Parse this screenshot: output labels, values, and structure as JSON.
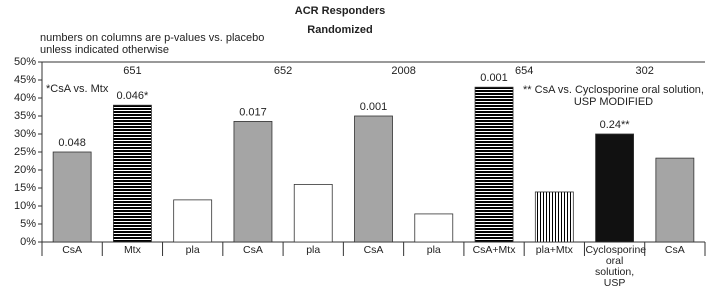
{
  "chart_data": {
    "type": "bar",
    "title": "ACR Responders",
    "subtitle": "Randomized",
    "annotation": "numbers on columns are p-values vs. placebo unless indicated otherwise",
    "notes": [
      "*CsA vs. Mtx",
      "** CsA vs. Cyclosporine oral solution, USP MODIFIED"
    ],
    "categories": [
      "CsA",
      "Mtx",
      "pla",
      "CsA",
      "pla",
      "CsA",
      "pla",
      "CsA+Mtx",
      "pla+Mtx",
      "Cyclosporine oral solution, USP MODIFIED",
      "CsA"
    ],
    "category_groups": [
      "651",
      "651",
      "651",
      "652",
      "652",
      "2008",
      "2008",
      "654",
      "654",
      "302",
      "302"
    ],
    "values": [
      25,
      38,
      11.7,
      33.5,
      16,
      35,
      7.8,
      43,
      13.9,
      30,
      23.3
    ],
    "column_labels": [
      "0.048",
      "0.046*",
      null,
      "0.017",
      null,
      "0.001",
      null,
      "0.001",
      null,
      "0.24**",
      null
    ],
    "fills": [
      "gray",
      "hstripe",
      "white",
      "gray",
      "white",
      "gray",
      "white",
      "hstripe",
      "vstripe",
      "black",
      "gray"
    ],
    "ylim": [
      0,
      50
    ],
    "yticks": [
      {
        "value": 0,
        "label": "0%"
      },
      {
        "value": 5,
        "label": "5%"
      },
      {
        "value": 10,
        "label": "10%"
      },
      {
        "value": 15,
        "label": "15%"
      },
      {
        "value": 20,
        "label": "20%"
      },
      {
        "value": 25,
        "label": "25%"
      },
      {
        "value": 30,
        "label": "30%"
      },
      {
        "value": 35,
        "label": "35%"
      },
      {
        "value": 40,
        "label": "40%"
      },
      {
        "value": 45,
        "label": "45%"
      },
      {
        "value": 50,
        "label": "50%"
      }
    ]
  }
}
